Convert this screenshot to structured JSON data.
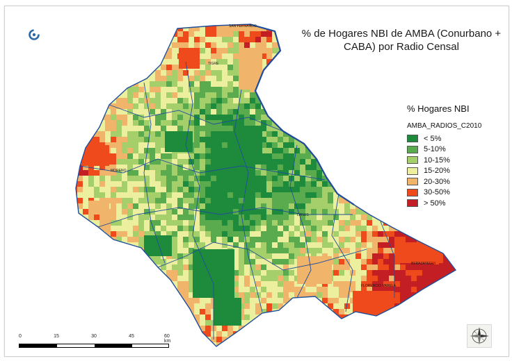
{
  "title_line1": "% de Hogares NBI de AMBA (Conurbano +",
  "title_line2": "CABA) por Radio Censal",
  "legend": {
    "title": "% Hogares NBI",
    "layer": "AMBA_RADIOS_C2010",
    "items": [
      {
        "label": "< 5%",
        "color": "#1e8a3c"
      },
      {
        "label": "5-10%",
        "color": "#5aaa4e"
      },
      {
        "label": "10-15%",
        "color": "#a5cf6a"
      },
      {
        "label": "15-20%",
        "color": "#ecef9e"
      },
      {
        "label": "20-30%",
        "color": "#f0b46a"
      },
      {
        "label": "30-50%",
        "color": "#ef4a1c"
      },
      {
        "label": "> 50%",
        "color": "#c21e24"
      }
    ]
  },
  "scale": {
    "ticks": [
      "0",
      "15",
      "30",
      "45",
      "60 km"
    ]
  },
  "map_labels": [
    "SAN FERNANDO",
    "TIGRE",
    "MORENO",
    "LANUS",
    "BERAZATEGUI",
    "FLORENCIO VARELA"
  ],
  "icons": {
    "logo": "circular-arrow-logo-icon",
    "compass": "compass-rose-icon"
  }
}
